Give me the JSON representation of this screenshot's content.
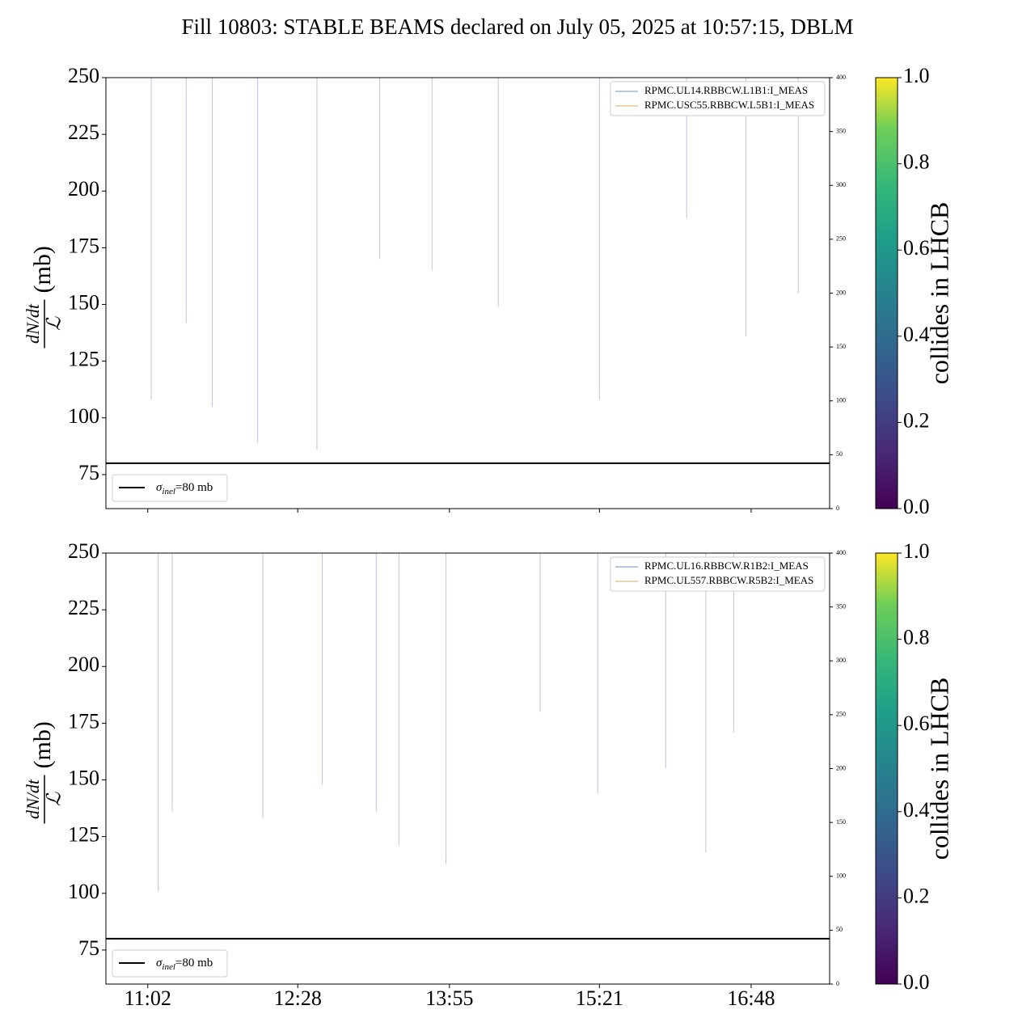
{
  "chart_data": [
    {
      "type": "line",
      "title": "Fill 10803: STABLE BEAMS declared on July 05, 2025 at 10:57:15, DBLM",
      "ylabel_num": "dN/dt",
      "ylabel_den": "ℒ",
      "ylabel_unit": "(mb)",
      "xlim": [
        638,
        1053
      ],
      "xticks": [
        662,
        748,
        835,
        921,
        1008
      ],
      "ylim": [
        60,
        250
      ],
      "yticks": [
        75,
        100,
        125,
        150,
        175,
        200,
        225,
        250
      ],
      "y2lim": [
        0,
        400
      ],
      "y2ticks": [
        0,
        50,
        100,
        150,
        200,
        250,
        300,
        350,
        400
      ],
      "legend": "upper right",
      "series": [
        {
          "name": "RPMC.UL14.RBBCW.L1B1:I_MEAS",
          "color": "#6f8fc0",
          "axis": "y2",
          "x": [
            656,
            1040
          ],
          "values": [
            0,
            0
          ]
        },
        {
          "name": "RPMC.USC55.RBBCW.L5B1:I_MEAS",
          "color": "#d9a85a",
          "axis": "y2",
          "x": [
            656,
            1040
          ],
          "values": [
            0,
            0
          ]
        }
      ],
      "spikes": {
        "color": "#c9bde0",
        "x": [
          664,
          699,
          725,
          759,
          825,
          921,
          1005,
          863,
          795,
          1035,
          684,
          971
        ],
        "values": [
          108,
          105,
          89,
          86,
          165,
          108,
          136,
          149,
          170,
          155,
          142,
          188
        ]
      },
      "hline": {
        "value": 80,
        "color": "#000000",
        "symbol": "σ",
        "sub": "inel",
        "rest": "=80 mb"
      },
      "colorbar": {
        "label": "collides in LHCB",
        "lim": [
          0,
          1
        ],
        "ticks": [
          {
            "value": 0,
            "label": "0.0"
          },
          {
            "value": 0.2,
            "label": "0.2"
          },
          {
            "value": 0.4,
            "label": "0.4"
          },
          {
            "value": 0.6,
            "label": "0.6"
          },
          {
            "value": 0.8,
            "label": "0.8"
          },
          {
            "value": 1,
            "label": "1.0"
          }
        ]
      }
    },
    {
      "type": "line",
      "ylabel_num": "dN/dt",
      "ylabel_den": "ℒ",
      "ylabel_unit": "(mb)",
      "xlim": [
        638,
        1053
      ],
      "xticks": [
        {
          "value": 662,
          "label": "11:02"
        },
        {
          "value": 748,
          "label": "12:28"
        },
        {
          "value": 835,
          "label": "13:55"
        },
        {
          "value": 921,
          "label": "15:21"
        },
        {
          "value": 1008,
          "label": "16:48"
        }
      ],
      "ylim": [
        60,
        250
      ],
      "yticks": [
        75,
        100,
        125,
        150,
        175,
        200,
        225,
        250
      ],
      "y2lim": [
        0,
        400
      ],
      "y2ticks": [
        0,
        50,
        100,
        150,
        200,
        250,
        300,
        350,
        400
      ],
      "legend": "upper right",
      "series": [
        {
          "name": "RPMC.UL16.RBBCW.R1B2:I_MEAS",
          "color": "#6f8fc0",
          "axis": "y2",
          "x": [
            656,
            1040
          ],
          "values": [
            0,
            0
          ]
        },
        {
          "name": "RPMC.UL557.RBBCW.R5B2:I_MEAS",
          "color": "#d9a85a",
          "axis": "y2",
          "x": [
            656,
            1040
          ],
          "values": [
            0,
            0
          ]
        }
      ],
      "spikes": {
        "color": "#c9bde0",
        "x": [
          668,
          806,
          833,
          982,
          920,
          793,
          728,
          762,
          998,
          676,
          887,
          959
        ],
        "values": [
          101,
          121,
          113,
          118,
          144,
          136,
          133,
          148,
          171,
          136,
          180,
          155
        ]
      },
      "hline": {
        "value": 80,
        "color": "#000000",
        "symbol": "σ",
        "sub": "inel",
        "rest": "=80 mb"
      },
      "colorbar": {
        "label": "collides in LHCB",
        "lim": [
          0,
          1
        ],
        "ticks": [
          {
            "value": 0,
            "label": "0.0"
          },
          {
            "value": 0.2,
            "label": "0.2"
          },
          {
            "value": 0.4,
            "label": "0.4"
          },
          {
            "value": 0.6,
            "label": "0.6"
          },
          {
            "value": 0.8,
            "label": "0.8"
          },
          {
            "value": 1,
            "label": "1.0"
          }
        ]
      }
    }
  ]
}
